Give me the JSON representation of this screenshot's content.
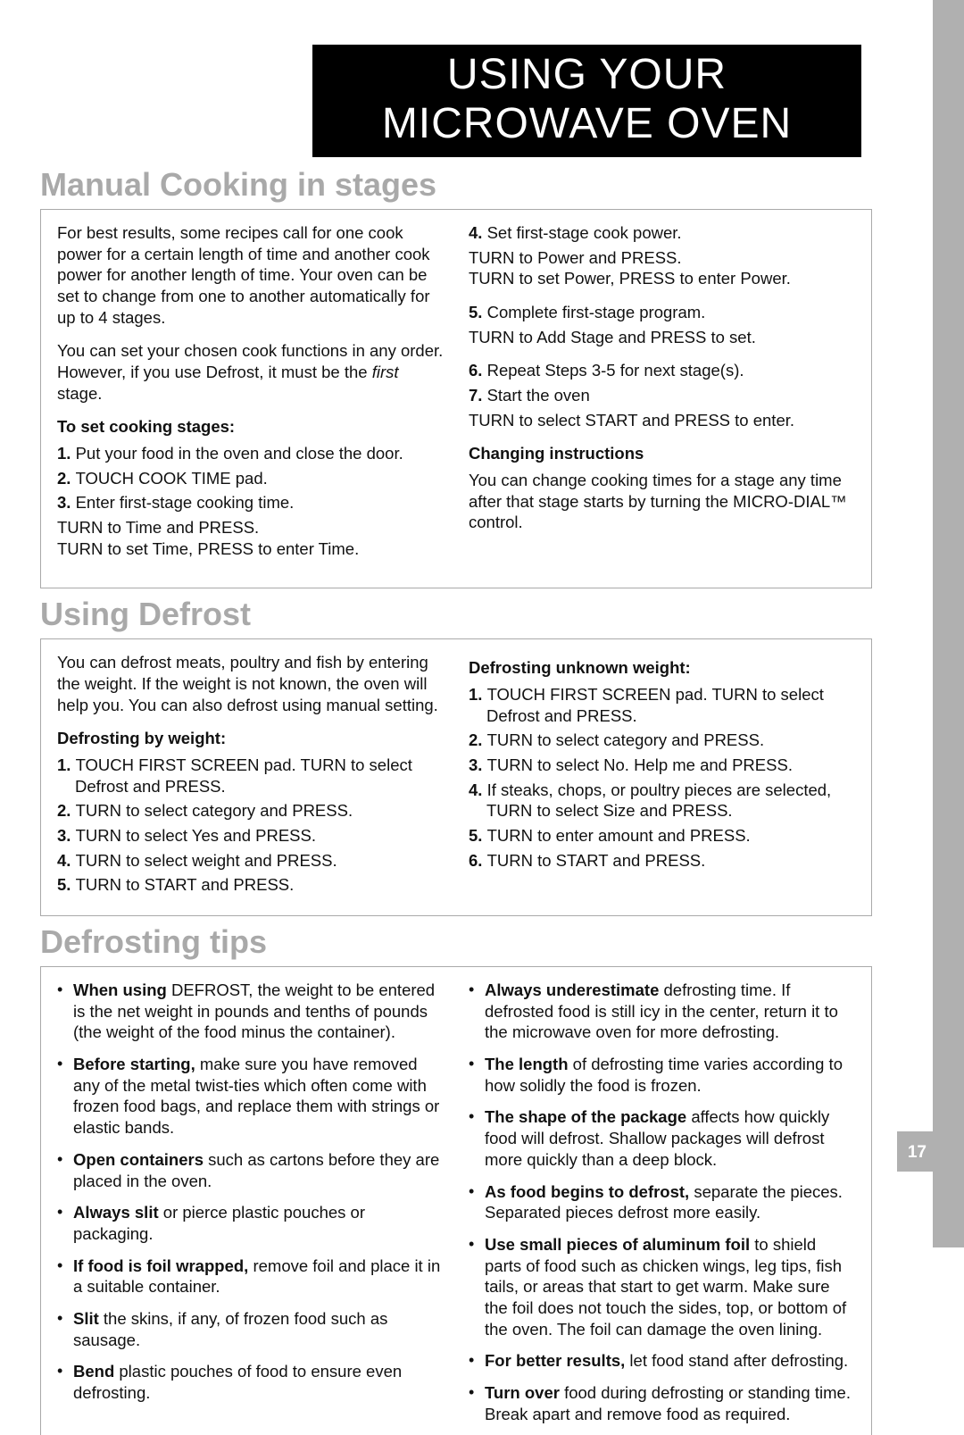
{
  "titleBar": "USING YOUR MICROWAVE OVEN",
  "pageNumber": "17",
  "colors": {
    "headingGray": "#a9a9a9",
    "tabGray": "#b0b0b0",
    "black": "#000000",
    "white": "#ffffff"
  },
  "section1": {
    "heading": "Manual Cooking in stages",
    "left": {
      "intro1": "For best results, some recipes call for one cook power for a certain length of time and another cook power for another length of time. Your oven can be set to change from one to another automatically for up to 4 stages.",
      "intro2a": "You can set your chosen cook functions in any order. However, if you use Defrost, it must be the ",
      "intro2italic": "first",
      "intro2b": " stage.",
      "subhead": "To set cooking stages:",
      "step1": "Put your food in the oven and close the door.",
      "step2": "TOUCH COOK TIME pad.",
      "step3": "Enter first-stage cooking time.",
      "under3a": "TURN to Time and PRESS.",
      "under3b": "TURN to set Time, PRESS to enter Time."
    },
    "right": {
      "step4": "Set first-stage cook power.",
      "under4a": "TURN to Power and PRESS.",
      "under4b": "TURN to set Power, PRESS to enter Power.",
      "step5": "Complete first-stage program.",
      "under5": "TURN to Add Stage and PRESS to set.",
      "step6": "Repeat Steps 3-5 for next stage(s).",
      "step7": "Start the oven",
      "under7": "TURN to select START and PRESS to enter.",
      "subhead": "Changing instructions",
      "changeText": "You can change cooking times for a stage any time after that stage starts by turning the MICRO-DIAL™ control."
    }
  },
  "section2": {
    "heading": "Using Defrost",
    "left": {
      "intro": "You can defrost meats, poultry and fish by entering the weight. If the weight is not known, the oven will help you. You can also defrost using manual setting.",
      "subhead": "Defrosting by weight:",
      "step1": "TOUCH FIRST SCREEN pad. TURN to select Defrost and PRESS.",
      "step2": "TURN to select category and PRESS.",
      "step3": "TURN to select Yes and PRESS.",
      "step4": "TURN to select weight and PRESS.",
      "step5": "TURN to START and PRESS."
    },
    "right": {
      "subhead": "Defrosting unknown weight:",
      "step1": "TOUCH FIRST SCREEN pad. TURN to select Defrost and PRESS.",
      "step2": "TURN to select category and PRESS.",
      "step3": "TURN to select No. Help me and PRESS.",
      "step4": "If steaks, chops, or poultry pieces are selected, TURN to select Size and PRESS.",
      "step5": "TURN to enter amount and PRESS.",
      "step6": "TURN to START and PRESS."
    }
  },
  "section3": {
    "heading": "Defrosting tips",
    "left": [
      {
        "lead": "When using",
        "rest": " DEFROST, the weight to be entered is the net weight in pounds and tenths of pounds (the weight of the food minus the container)."
      },
      {
        "lead": "Before starting,",
        "rest": " make sure you have removed any of the metal twist-ties which often come with frozen food bags, and replace them with strings or elastic bands."
      },
      {
        "lead": "Open containers",
        "rest": " such as cartons before they are placed in the oven."
      },
      {
        "lead": "Always slit",
        "rest": " or pierce plastic pouches or packaging."
      },
      {
        "lead": "If food is foil wrapped,",
        "rest": " remove foil and place it in a suitable container."
      },
      {
        "lead": "Slit",
        "rest": " the skins, if any, of frozen food such as sausage."
      },
      {
        "lead": "Bend",
        "rest": " plastic pouches of food to ensure even defrosting."
      }
    ],
    "right": [
      {
        "lead": "Always underestimate",
        "rest": " defrosting time. If defrosted food is still icy in the center, return it to the microwave oven for more defrosting."
      },
      {
        "lead": "The length",
        "rest": " of defrosting time varies according to how solidly the food is frozen."
      },
      {
        "lead": "The shape of the package",
        "rest": " affects how quickly food will defrost. Shallow packages will defrost more quickly than a deep block."
      },
      {
        "lead": "As food begins to defrost,",
        "rest": " separate the pieces. Separated pieces defrost more easily."
      },
      {
        "lead": "Use small pieces of aluminum foil",
        "rest": " to shield parts of food such as chicken wings, leg tips, fish tails, or areas that start to get warm. Make sure the foil does not touch the sides, top, or bottom of the oven. The foil can damage the oven lining."
      },
      {
        "lead": "For better results,",
        "rest": " let food stand after defrosting."
      },
      {
        "lead": "Turn over",
        "rest": " food during defrosting or standing time. Break apart and remove food as required."
      }
    ]
  }
}
